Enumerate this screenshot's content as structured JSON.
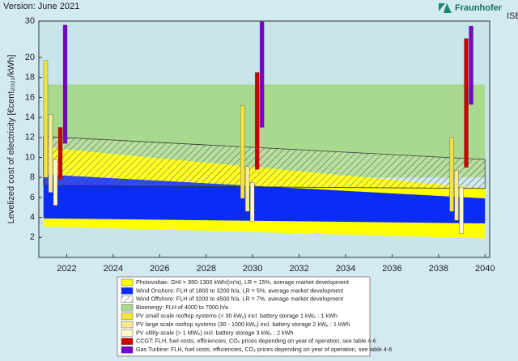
{
  "chart_data": {
    "type": "range",
    "annotations": [
      "Version: June 2021",
      "Fraunhofer",
      "ISE"
    ],
    "y_label": "Levelized cost of electricity [€cent₂₀₂₁/kWh]",
    "xlim": [
      2020.8,
      2040.2
    ],
    "xticks": [
      2022,
      2024,
      2026,
      2028,
      2030,
      2032,
      2034,
      2036,
      2038,
      2040
    ],
    "ylim": [
      0,
      30
    ],
    "ybreak": 20,
    "yticks": [
      2,
      4,
      6,
      8,
      10,
      12,
      14,
      16,
      18,
      20,
      30
    ],
    "bands": [
      {
        "name": "Bioenergy: FLH of 4000 to 7000 h/a",
        "color": "#a9d98f",
        "hatch": false,
        "x": [
          2021,
          2040
        ],
        "low": [
          8.0,
          8.0
        ],
        "high": [
          17.3,
          17.3
        ]
      },
      {
        "name": "Photovoltaic: GHI = 950-1300 kWh/(m²a), LR = 15%, average market development",
        "color": "#ffff00",
        "hatch": false,
        "x": [
          2021,
          2040
        ],
        "low": [
          3.1,
          1.9
        ],
        "high": [
          11.0,
          6.9
        ]
      },
      {
        "name": "Wind Onshore: FLH of 1800 to 3200 h/a, LR = 5%, average market development",
        "color": "#0a2cf5",
        "hatch": false,
        "x": [
          2021,
          2040
        ],
        "low": [
          3.9,
          3.4
        ],
        "high": [
          8.3,
          5.9
        ]
      },
      {
        "name": "Wind Offshore: FLH of 3200 to 4500 h/a, LR = 7%, average market development",
        "color": "#333333",
        "hatch": true,
        "x": [
          2021,
          2040
        ],
        "low": [
          7.2,
          6.9
        ],
        "high": [
          12.1,
          9.8
        ]
      }
    ],
    "series": [
      {
        "name": "PV small scale rooftop systems (< 30 kWₚ) incl. battery storage 1 kWₚ : 1 kWh",
        "color": "#f3e43a",
        "x": [
          2021,
          2030,
          2039
        ],
        "low": [
          8.0,
          5.9,
          4.6
        ],
        "high": [
          19.7,
          15.2,
          12.0
        ]
      },
      {
        "name": "PV large scale rooftop systems (30 - 1000 kWₚ) incl. battery storage 2 kWₚ : 1 kWh",
        "color": "#f7ec92",
        "x": [
          2021,
          2030,
          2039
        ],
        "low": [
          6.5,
          4.6,
          3.7
        ],
        "high": [
          14.3,
          9.1,
          8.7
        ]
      },
      {
        "name": "PV utility-scale (> 1 MWₚ) incl. battery storage 3 kWₚ : 2 kWh",
        "color": "#fff8c8",
        "x": [
          2021,
          2030,
          2039
        ],
        "low": [
          5.2,
          3.6,
          2.4
        ],
        "high": [
          9.8,
          7.5,
          7.0
        ]
      },
      {
        "name": "CCGT: FLH, fuel costs, efficiencies, CO₂ prices depending on year of operation, see table 4-6",
        "color": "#cc0000",
        "x": [
          2021,
          2030,
          2039
        ],
        "low": [
          7.8,
          8.8,
          9.0
        ],
        "high": [
          13.0,
          18.5,
          25.2
        ]
      },
      {
        "name": "Gas Turbine: FLH, fuel costs, efficiencies, CO₂ prices depending on year of operation, see table 4-6",
        "color": "#7a00cc",
        "x": [
          2021,
          2030,
          2039
        ],
        "low": [
          11.4,
          13.0,
          15.3
        ],
        "high": [
          28.9,
          29.8,
          28.6
        ]
      }
    ]
  }
}
